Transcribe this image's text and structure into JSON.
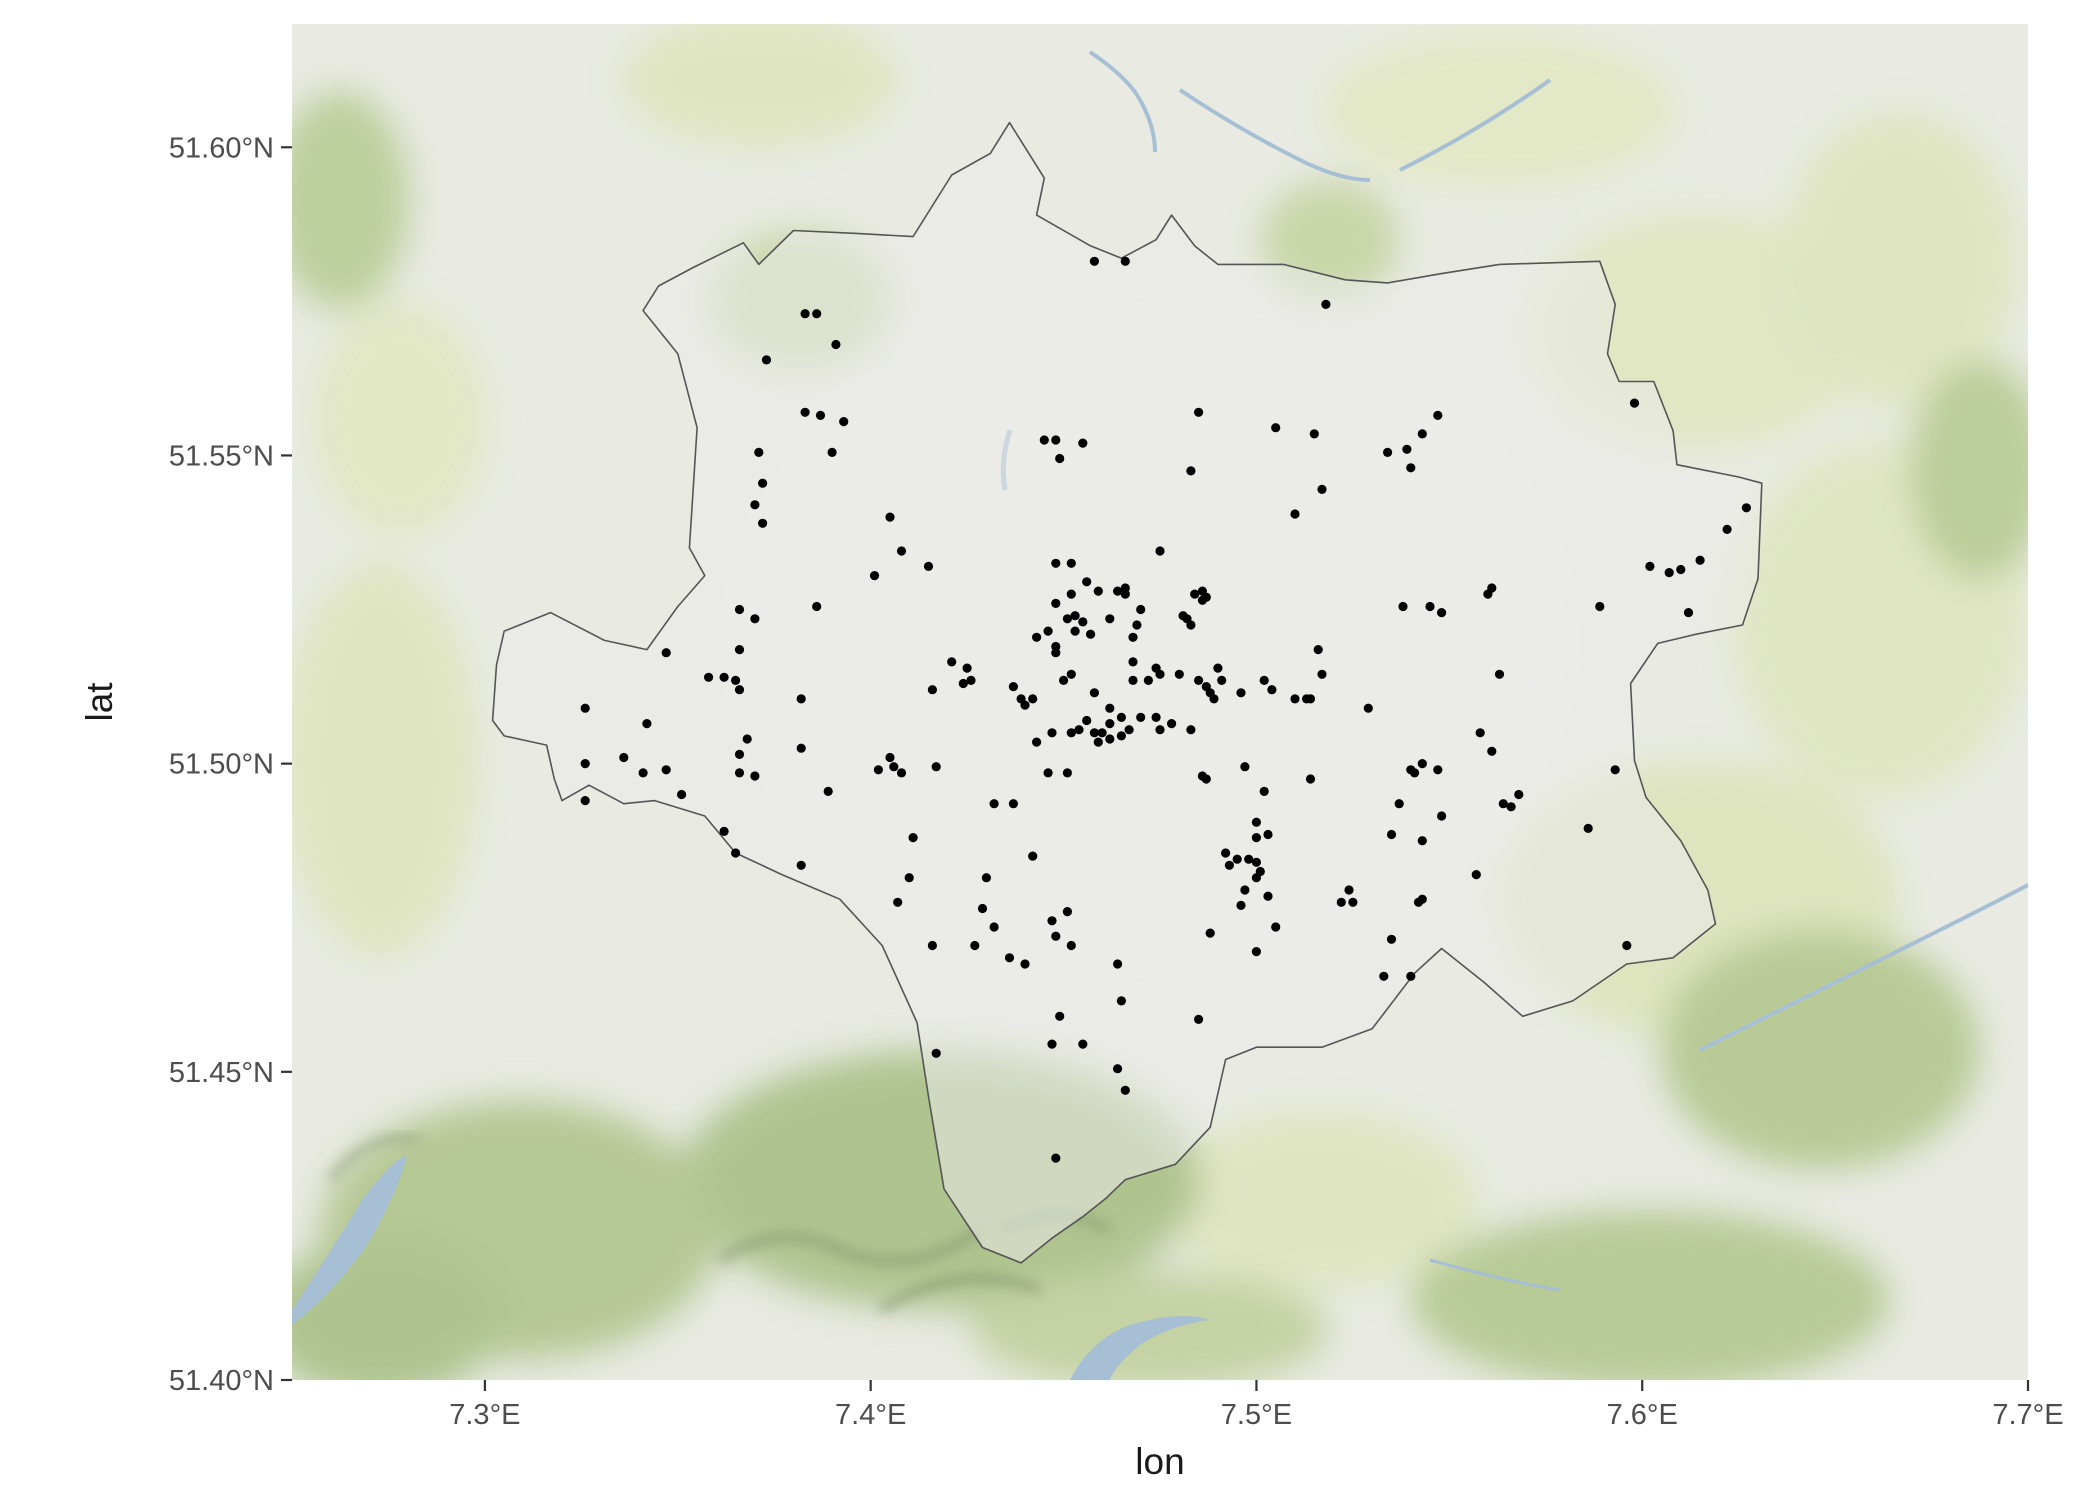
{
  "chart_data": {
    "type": "scatter",
    "title": "",
    "xlabel": "lon",
    "ylabel": "lat",
    "xlim": [
      7.25,
      7.7
    ],
    "ylim": [
      51.4,
      51.62
    ],
    "x_ticks": [
      7.3,
      7.4,
      7.5,
      7.6,
      7.7
    ],
    "x_tick_labels": [
      "7.3°E",
      "7.4°E",
      "7.5°E",
      "7.6°E",
      "7.7°E"
    ],
    "y_ticks": [
      51.4,
      51.45,
      51.5,
      51.55,
      51.6
    ],
    "y_tick_labels": [
      "51.40°N",
      "51.45°N",
      "51.50°N",
      "51.55°N",
      "51.60°N"
    ],
    "basemap": "terrain",
    "boundary_color": "#555555",
    "point_color": "#000000",
    "boundary": [
      [
        7.354,
        51.5805
      ],
      [
        7.367,
        51.5845
      ],
      [
        7.371,
        51.581
      ],
      [
        7.38,
        51.5865
      ],
      [
        7.397,
        51.586
      ],
      [
        7.411,
        51.5855
      ],
      [
        7.421,
        51.5955
      ],
      [
        7.431,
        51.599
      ],
      [
        7.436,
        51.604
      ],
      [
        7.44,
        51.6
      ],
      [
        7.445,
        51.595
      ],
      [
        7.443,
        51.589
      ],
      [
        7.457,
        51.584
      ],
      [
        7.465,
        51.582
      ],
      [
        7.474,
        51.585
      ],
      [
        7.478,
        51.589
      ],
      [
        7.484,
        51.584
      ],
      [
        7.49,
        51.581
      ],
      [
        7.507,
        51.581
      ],
      [
        7.523,
        51.5785
      ],
      [
        7.534,
        51.578
      ],
      [
        7.548,
        51.5795
      ],
      [
        7.563,
        51.581
      ],
      [
        7.589,
        51.5815
      ],
      [
        7.593,
        51.5745
      ],
      [
        7.591,
        51.5665
      ],
      [
        7.594,
        51.562
      ],
      [
        7.603,
        51.562
      ],
      [
        7.608,
        51.554
      ],
      [
        7.609,
        51.5485
      ],
      [
        7.625,
        51.5465
      ],
      [
        7.631,
        51.5455
      ],
      [
        7.63,
        51.53
      ],
      [
        7.626,
        51.5225
      ],
      [
        7.614,
        51.521
      ],
      [
        7.604,
        51.5195
      ],
      [
        7.597,
        51.513
      ],
      [
        7.598,
        51.5005
      ],
      [
        7.601,
        51.4945
      ],
      [
        7.61,
        51.4875
      ],
      [
        7.617,
        51.4795
      ],
      [
        7.619,
        51.474
      ],
      [
        7.608,
        51.4685
      ],
      [
        7.596,
        51.4675
      ],
      [
        7.582,
        51.4615
      ],
      [
        7.569,
        51.459
      ],
      [
        7.559,
        51.4645
      ],
      [
        7.548,
        51.47
      ],
      [
        7.541,
        51.466
      ],
      [
        7.53,
        51.457
      ],
      [
        7.517,
        51.454
      ],
      [
        7.5,
        51.454
      ],
      [
        7.492,
        51.452
      ],
      [
        7.488,
        51.441
      ],
      [
        7.479,
        51.435
      ],
      [
        7.466,
        51.4325
      ],
      [
        7.461,
        51.4295
      ],
      [
        7.455,
        51.4265
      ],
      [
        7.447,
        51.423
      ],
      [
        7.439,
        51.419
      ],
      [
        7.429,
        51.4215
      ],
      [
        7.419,
        51.431
      ],
      [
        7.415,
        51.446
      ],
      [
        7.412,
        51.458
      ],
      [
        7.403,
        51.4705
      ],
      [
        7.392,
        51.478
      ],
      [
        7.377,
        51.482
      ],
      [
        7.365,
        51.4855
      ],
      [
        7.357,
        51.4915
      ],
      [
        7.344,
        51.494
      ],
      [
        7.336,
        51.4935
      ],
      [
        7.327,
        51.4965
      ],
      [
        7.32,
        51.494
      ],
      [
        7.318,
        51.4975
      ],
      [
        7.316,
        51.503
      ],
      [
        7.305,
        51.5045
      ],
      [
        7.302,
        51.507
      ],
      [
        7.303,
        51.516
      ],
      [
        7.305,
        51.5215
      ],
      [
        7.317,
        51.5245
      ],
      [
        7.331,
        51.52
      ],
      [
        7.342,
        51.5185
      ],
      [
        7.35,
        51.5255
      ],
      [
        7.357,
        51.5305
      ],
      [
        7.353,
        51.535
      ],
      [
        7.355,
        51.5545
      ],
      [
        7.35,
        51.5665
      ],
      [
        7.341,
        51.5735
      ],
      [
        7.345,
        51.5775
      ],
      [
        7.354,
        51.5805
      ]
    ],
    "points": [
      [
        7.405,
        51.54
      ],
      [
        7.408,
        51.5345
      ],
      [
        7.415,
        51.532
      ],
      [
        7.401,
        51.5305
      ],
      [
        7.393,
        51.5555
      ],
      [
        7.39,
        51.5505
      ],
      [
        7.383,
        51.557
      ],
      [
        7.387,
        51.5565
      ],
      [
        7.383,
        51.573
      ],
      [
        7.386,
        51.573
      ],
      [
        7.391,
        51.568
      ],
      [
        7.373,
        51.5655
      ],
      [
        7.371,
        51.5505
      ],
      [
        7.372,
        51.5455
      ],
      [
        7.372,
        51.539
      ],
      [
        7.37,
        51.542
      ],
      [
        7.386,
        51.5255
      ],
      [
        7.37,
        51.5235
      ],
      [
        7.366,
        51.525
      ],
      [
        7.347,
        51.518
      ],
      [
        7.366,
        51.5185
      ],
      [
        7.362,
        51.514
      ],
      [
        7.365,
        51.5135
      ],
      [
        7.366,
        51.512
      ],
      [
        7.358,
        51.514
      ],
      [
        7.382,
        51.5105
      ],
      [
        7.326,
        51.509
      ],
      [
        7.342,
        51.5065
      ],
      [
        7.368,
        51.504
      ],
      [
        7.382,
        51.5025
      ],
      [
        7.366,
        51.5015
      ],
      [
        7.326,
        51.5
      ],
      [
        7.336,
        51.501
      ],
      [
        7.341,
        51.4985
      ],
      [
        7.347,
        51.499
      ],
      [
        7.366,
        51.4985
      ],
      [
        7.37,
        51.498
      ],
      [
        7.351,
        51.495
      ],
      [
        7.326,
        51.494
      ],
      [
        7.389,
        51.4955
      ],
      [
        7.362,
        51.489
      ],
      [
        7.365,
        51.4855
      ],
      [
        7.382,
        51.4835
      ],
      [
        7.402,
        51.499
      ],
      [
        7.405,
        51.501
      ],
      [
        7.406,
        51.4995
      ],
      [
        7.408,
        51.4985
      ],
      [
        7.417,
        51.4995
      ],
      [
        7.421,
        51.5165
      ],
      [
        7.424,
        51.513
      ],
      [
        7.426,
        51.5135
      ],
      [
        7.425,
        51.5155
      ],
      [
        7.416,
        51.512
      ],
      [
        7.411,
        51.488
      ],
      [
        7.41,
        51.4815
      ],
      [
        7.407,
        51.4775
      ],
      [
        7.416,
        51.4705
      ],
      [
        7.417,
        51.453
      ],
      [
        7.448,
        51.5325
      ],
      [
        7.452,
        51.5325
      ],
      [
        7.456,
        51.5295
      ],
      [
        7.452,
        51.5275
      ],
      [
        7.459,
        51.528
      ],
      [
        7.464,
        51.528
      ],
      [
        7.466,
        51.5275
      ],
      [
        7.466,
        51.5285
      ],
      [
        7.47,
        51.525
      ],
      [
        7.448,
        51.526
      ],
      [
        7.451,
        51.5235
      ],
      [
        7.453,
        51.524
      ],
      [
        7.455,
        51.523
      ],
      [
        7.453,
        51.5215
      ],
      [
        7.457,
        51.521
      ],
      [
        7.446,
        51.5215
      ],
      [
        7.443,
        51.5205
      ],
      [
        7.448,
        51.519
      ],
      [
        7.448,
        51.518
      ],
      [
        7.462,
        51.5235
      ],
      [
        7.469,
        51.5225
      ],
      [
        7.468,
        51.5205
      ],
      [
        7.475,
        51.5345
      ],
      [
        7.448,
        51.5525
      ],
      [
        7.449,
        51.5495
      ],
      [
        7.455,
        51.552
      ],
      [
        7.445,
        51.5525
      ],
      [
        7.466,
        51.5815
      ],
      [
        7.458,
        51.5815
      ],
      [
        7.483,
        51.5475
      ],
      [
        7.485,
        51.557
      ],
      [
        7.481,
        51.524
      ],
      [
        7.484,
        51.5275
      ],
      [
        7.486,
        51.528
      ],
      [
        7.486,
        51.5265
      ],
      [
        7.483,
        51.5225
      ],
      [
        7.482,
        51.5235
      ],
      [
        7.487,
        51.527
      ],
      [
        7.474,
        51.5155
      ],
      [
        7.475,
        51.5145
      ],
      [
        7.468,
        51.5165
      ],
      [
        7.472,
        51.5135
      ],
      [
        7.468,
        51.5135
      ],
      [
        7.48,
        51.5145
      ],
      [
        7.49,
        51.5155
      ],
      [
        7.487,
        51.5125
      ],
      [
        7.485,
        51.5135
      ],
      [
        7.488,
        51.5115
      ],
      [
        7.489,
        51.5105
      ],
      [
        7.491,
        51.5135
      ],
      [
        7.496,
        51.5115
      ],
      [
        7.452,
        51.5145
      ],
      [
        7.45,
        51.5135
      ],
      [
        7.437,
        51.5125
      ],
      [
        7.439,
        51.5105
      ],
      [
        7.442,
        51.5105
      ],
      [
        7.44,
        51.5095
      ],
      [
        7.458,
        51.5115
      ],
      [
        7.452,
        51.505
      ],
      [
        7.454,
        51.5055
      ],
      [
        7.456,
        51.507
      ],
      [
        7.458,
        51.505
      ],
      [
        7.459,
        51.5035
      ],
      [
        7.46,
        51.505
      ],
      [
        7.462,
        51.504
      ],
      [
        7.462,
        51.5065
      ],
      [
        7.462,
        51.509
      ],
      [
        7.465,
        51.5075
      ],
      [
        7.465,
        51.5045
      ],
      [
        7.467,
        51.5055
      ],
      [
        7.47,
        51.5075
      ],
      [
        7.474,
        51.5075
      ],
      [
        7.475,
        51.5055
      ],
      [
        7.478,
        51.5065
      ],
      [
        7.483,
        51.5055
      ],
      [
        7.447,
        51.505
      ],
      [
        7.446,
        51.4985
      ],
      [
        7.451,
        51.4985
      ],
      [
        7.443,
        51.5035
      ],
      [
        7.432,
        51.4935
      ],
      [
        7.437,
        51.4935
      ],
      [
        7.442,
        51.485
      ],
      [
        7.43,
        51.4815
      ],
      [
        7.429,
        51.4765
      ],
      [
        7.432,
        51.4735
      ],
      [
        7.427,
        51.4705
      ],
      [
        7.436,
        51.4685
      ],
      [
        7.44,
        51.4675
      ],
      [
        7.447,
        51.4745
      ],
      [
        7.448,
        51.472
      ],
      [
        7.451,
        51.476
      ],
      [
        7.452,
        51.4705
      ],
      [
        7.449,
        51.459
      ],
      [
        7.447,
        51.4545
      ],
      [
        7.455,
        51.4545
      ],
      [
        7.464,
        51.4675
      ],
      [
        7.465,
        51.4615
      ],
      [
        7.464,
        51.4505
      ],
      [
        7.466,
        51.447
      ],
      [
        7.448,
        51.436
      ],
      [
        7.485,
        51.4585
      ],
      [
        7.488,
        51.4725
      ],
      [
        7.496,
        51.477
      ],
      [
        7.497,
        51.4795
      ],
      [
        7.5,
        51.4815
      ],
      [
        7.501,
        51.4825
      ],
      [
        7.5,
        51.484
      ],
      [
        7.498,
        51.4845
      ],
      [
        7.495,
        51.4845
      ],
      [
        7.492,
        51.4855
      ],
      [
        7.493,
        51.4835
      ],
      [
        7.5,
        51.4905
      ],
      [
        7.5,
        51.488
      ],
      [
        7.503,
        51.4885
      ],
      [
        7.502,
        51.4955
      ],
      [
        7.497,
        51.4995
      ],
      [
        7.487,
        51.4975
      ],
      [
        7.486,
        51.498
      ],
      [
        7.503,
        51.4785
      ],
      [
        7.505,
        51.4735
      ],
      [
        7.5,
        51.4695
      ],
      [
        7.514,
        51.4975
      ],
      [
        7.502,
        51.5135
      ],
      [
        7.504,
        51.512
      ],
      [
        7.51,
        51.5105
      ],
      [
        7.513,
        51.5105
      ],
      [
        7.514,
        51.5105
      ],
      [
        7.516,
        51.5185
      ],
      [
        7.517,
        51.5145
      ],
      [
        7.515,
        51.5535
      ],
      [
        7.505,
        51.5545
      ],
      [
        7.51,
        51.5405
      ],
      [
        7.517,
        51.5445
      ],
      [
        7.518,
        51.5745
      ],
      [
        7.529,
        51.509
      ],
      [
        7.522,
        51.4775
      ],
      [
        7.524,
        51.4795
      ],
      [
        7.525,
        51.4775
      ],
      [
        7.533,
        51.4655
      ],
      [
        7.535,
        51.4715
      ],
      [
        7.535,
        51.4885
      ],
      [
        7.537,
        51.4935
      ],
      [
        7.54,
        51.499
      ],
      [
        7.541,
        51.4985
      ],
      [
        7.543,
        51.5
      ],
      [
        7.547,
        51.499
      ],
      [
        7.548,
        51.4915
      ],
      [
        7.543,
        51.4875
      ],
      [
        7.542,
        51.4775
      ],
      [
        7.543,
        51.478
      ],
      [
        7.54,
        51.4655
      ],
      [
        7.538,
        51.5255
      ],
      [
        7.545,
        51.5255
      ],
      [
        7.548,
        51.5245
      ],
      [
        7.534,
        51.5505
      ],
      [
        7.539,
        51.551
      ],
      [
        7.54,
        51.548
      ],
      [
        7.543,
        51.5535
      ],
      [
        7.547,
        51.5565
      ],
      [
        7.558,
        51.505
      ],
      [
        7.561,
        51.502
      ],
      [
        7.557,
        51.482
      ],
      [
        7.56,
        51.5275
      ],
      [
        7.561,
        51.5285
      ],
      [
        7.563,
        51.5145
      ],
      [
        7.564,
        51.4935
      ],
      [
        7.566,
        51.493
      ],
      [
        7.568,
        51.495
      ],
      [
        7.586,
        51.4895
      ],
      [
        7.589,
        51.5255
      ],
      [
        7.593,
        51.499
      ],
      [
        7.596,
        51.4705
      ],
      [
        7.598,
        51.5585
      ],
      [
        7.602,
        51.532
      ],
      [
        7.607,
        51.531
      ],
      [
        7.61,
        51.5315
      ],
      [
        7.612,
        51.5245
      ],
      [
        7.615,
        51.533
      ],
      [
        7.622,
        51.538
      ],
      [
        7.627,
        51.5415
      ]
    ]
  }
}
